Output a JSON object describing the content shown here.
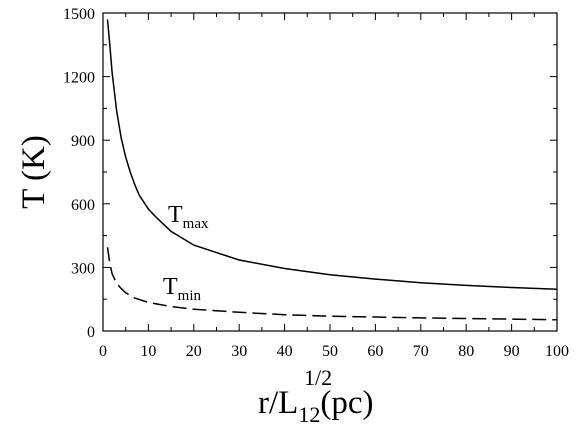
{
  "chart_data": {
    "type": "line",
    "xlabel": {
      "base": "r/L",
      "sub": "12",
      "sup": "1/2",
      "unit": "(pc)"
    },
    "ylabel": "T (K)",
    "xlim": [
      0,
      100
    ],
    "ylim": [
      0,
      1500
    ],
    "xticks": [
      0,
      10,
      20,
      30,
      40,
      50,
      60,
      70,
      80,
      90,
      100
    ],
    "yticks": [
      0,
      300,
      600,
      900,
      1200,
      1500
    ],
    "grid": false,
    "legend": "none",
    "series": [
      {
        "name": "Tmax",
        "label": {
          "main": "T",
          "sub": "max"
        },
        "style": "solid",
        "color": "#000000",
        "x": [
          1,
          1.5,
          2,
          3,
          4,
          5,
          6,
          7,
          8,
          10,
          12,
          15,
          20,
          25,
          30,
          40,
          50,
          60,
          70,
          80,
          90,
          100
        ],
        "y": [
          1470,
          1350,
          1220,
          1040,
          910,
          820,
          750,
          690,
          640,
          575,
          530,
          470,
          405,
          370,
          335,
          295,
          265,
          245,
          228,
          215,
          205,
          197
        ]
      },
      {
        "name": "Tmin",
        "label": {
          "main": "T",
          "sub": "min"
        },
        "style": "dashed",
        "color": "#000000",
        "x": [
          1,
          1.5,
          2,
          3,
          4,
          5,
          7,
          10,
          15,
          20,
          30,
          40,
          50,
          60,
          70,
          80,
          90,
          100
        ],
        "y": [
          395,
          320,
          270,
          225,
          200,
          180,
          155,
          135,
          115,
          103,
          88,
          77,
          70,
          66,
          62,
          59,
          56,
          53
        ]
      }
    ]
  }
}
